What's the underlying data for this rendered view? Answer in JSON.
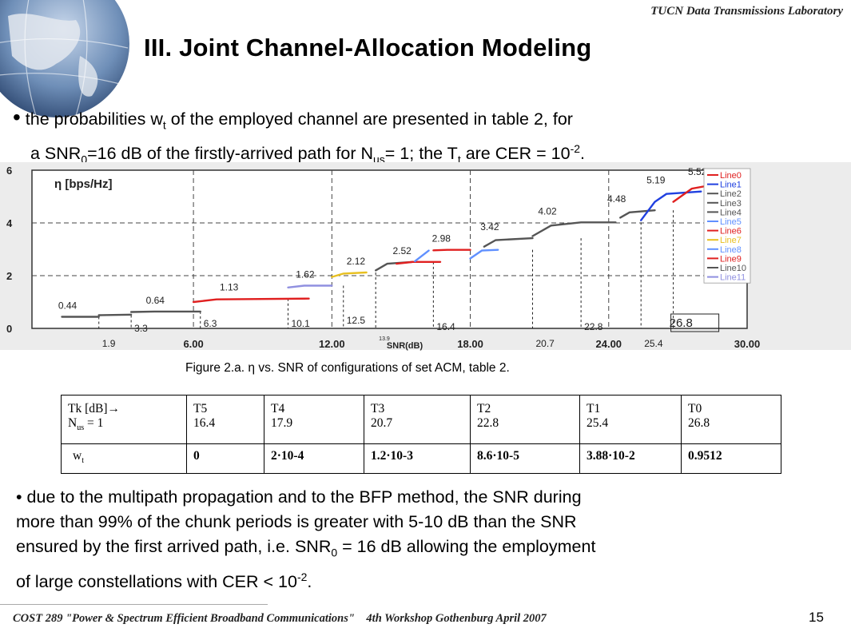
{
  "header": {
    "lab": "TUCN Data Transmissions Laboratory",
    "title": "III. Joint Channel-Allocation Modeling"
  },
  "bullet1": {
    "l1_pre": " the probabilities w",
    "l1_sub": "t",
    "l1_post": " of the employed channel are presented in table 2, for",
    "l2_a": "a SNR",
    "l2_sub0": "0",
    "l2_b": "=16 dB of the firstly-arrived path for N",
    "l2_sub1": "us",
    "l2_c": "= 1; the T",
    "l2_sub2": "t",
    "l2_d": " are CER = 10",
    "l2_sup": "-2",
    "l2_e": "."
  },
  "figure_caption": "Figure 2.a. η vs. SNR of configurations of set ACM, table 2.",
  "chart_data": {
    "type": "line",
    "ylabel": "η [bps/Hz]",
    "xlabel": "SNR(dB)",
    "xlim": [
      -1,
      30
    ],
    "ylim": [
      0,
      6
    ],
    "xticks": [
      "0",
      "6.00",
      "12.00",
      "18.00",
      "24.00",
      "30.00"
    ],
    "yticks": [
      "0",
      "2",
      "4",
      "6"
    ],
    "legend": [
      "Line0",
      "Line1",
      "Line2",
      "Line3",
      "Line4",
      "Line5",
      "Line6",
      "Line7",
      "Line8",
      "Line9",
      "Line10",
      "Line11"
    ],
    "legend_colors": [
      "#e02020",
      "#2040e0",
      "#555555",
      "#555555",
      "#555555",
      "#6090ff",
      "#e02020",
      "#e8c020",
      "#6090ff",
      "#e02020",
      "#555555",
      "#9090e0"
    ],
    "level_labels": [
      {
        "text": "0.44",
        "x": 0.0,
        "y": 0.44
      },
      {
        "text": "0.64",
        "x": 3.8,
        "y": 0.64
      },
      {
        "text": "1.13",
        "x": 7.0,
        "y": 1.13
      },
      {
        "text": "1.62",
        "x": 10.3,
        "y": 1.62
      },
      {
        "text": "2.12",
        "x": 12.5,
        "y": 2.12
      },
      {
        "text": "2.52",
        "x": 14.5,
        "y": 2.52
      },
      {
        "text": "2.98",
        "x": 16.2,
        "y": 2.98
      },
      {
        "text": "3.42",
        "x": 18.3,
        "y": 3.42
      },
      {
        "text": "4.02",
        "x": 20.8,
        "y": 4.02
      },
      {
        "text": "4.48",
        "x": 23.8,
        "y": 4.48
      },
      {
        "text": "5.19",
        "x": 25.5,
        "y": 5.19
      },
      {
        "text": "5.52",
        "x": 27.3,
        "y": 5.52
      }
    ],
    "threshold_labels": [
      {
        "text": "1.9",
        "x": 1.9
      },
      {
        "text": "3.3",
        "x": 3.3
      },
      {
        "text": "6.3",
        "x": 6.3
      },
      {
        "text": "10.1",
        "x": 10.1
      },
      {
        "text": "12.5",
        "x": 12.5
      },
      {
        "text": "13.9",
        "x": 13.9
      },
      {
        "text": "16.4",
        "x": 16.4
      },
      {
        "text": "20.7",
        "x": 20.7
      },
      {
        "text": "22.8",
        "x": 22.8
      },
      {
        "text": "25.4",
        "x": 25.4
      },
      {
        "text": "26.8",
        "x": 26.8
      }
    ],
    "series": [
      {
        "color": "#555555",
        "points": [
          [
            0.3,
            0.44
          ],
          [
            1.9,
            0.44
          ]
        ]
      },
      {
        "color": "#555555",
        "points": [
          [
            1.9,
            0.5
          ],
          [
            3.3,
            0.52
          ]
        ]
      },
      {
        "color": "#555555",
        "points": [
          [
            3.3,
            0.62
          ],
          [
            4.3,
            0.64
          ],
          [
            6.3,
            0.64
          ]
        ]
      },
      {
        "color": "#e02020",
        "points": [
          [
            6.0,
            1.0
          ],
          [
            7.0,
            1.1
          ],
          [
            11.0,
            1.13
          ]
        ]
      },
      {
        "color": "#9090e0",
        "points": [
          [
            10.1,
            1.55
          ],
          [
            10.8,
            1.62
          ],
          [
            12.0,
            1.62
          ]
        ]
      },
      {
        "color": "#e8c020",
        "points": [
          [
            12.0,
            1.95
          ],
          [
            12.5,
            2.08
          ],
          [
            13.5,
            2.12
          ]
        ]
      },
      {
        "color": "#555555",
        "points": [
          [
            13.9,
            2.2
          ],
          [
            14.4,
            2.45
          ],
          [
            15.5,
            2.52
          ]
        ]
      },
      {
        "color": "#e02020",
        "points": [
          [
            14.8,
            2.45
          ],
          [
            15.5,
            2.52
          ],
          [
            16.7,
            2.52
          ]
        ]
      },
      {
        "color": "#6090ff",
        "points": [
          [
            15.6,
            2.55
          ],
          [
            16.2,
            2.95
          ]
        ]
      },
      {
        "color": "#e02020",
        "points": [
          [
            16.4,
            2.96
          ],
          [
            17.0,
            2.98
          ],
          [
            18.0,
            2.98
          ]
        ]
      },
      {
        "color": "#6090ff",
        "points": [
          [
            18.0,
            2.65
          ],
          [
            18.5,
            2.95
          ],
          [
            19.2,
            2.98
          ]
        ]
      },
      {
        "color": "#555555",
        "points": [
          [
            18.6,
            3.1
          ],
          [
            19.1,
            3.35
          ],
          [
            20.7,
            3.42
          ]
        ]
      },
      {
        "color": "#555555",
        "points": [
          [
            20.7,
            3.5
          ],
          [
            21.5,
            3.9
          ],
          [
            22.8,
            4.02
          ],
          [
            24.3,
            4.02
          ]
        ]
      },
      {
        "color": "#555555",
        "points": [
          [
            24.5,
            4.2
          ],
          [
            24.9,
            4.4
          ],
          [
            26.0,
            4.48
          ]
        ]
      },
      {
        "color": "#2040e0",
        "points": [
          [
            25.4,
            4.1
          ],
          [
            26.0,
            4.8
          ],
          [
            26.5,
            5.1
          ],
          [
            28.0,
            5.19
          ]
        ]
      },
      {
        "color": "#e02020",
        "points": [
          [
            26.8,
            4.8
          ],
          [
            27.6,
            5.3
          ],
          [
            29.0,
            5.52
          ]
        ]
      }
    ]
  },
  "table": {
    "header": {
      "tk_label": "Tk [dB]→",
      "nus_pre": "N",
      "nus_sub": "us",
      "nus_post": " = 1",
      "wt_pre": "w",
      "wt_sub": "t"
    },
    "columns": [
      {
        "name": "T5",
        "snr": "16.4",
        "wt": "0"
      },
      {
        "name": "T4",
        "snr": "17.9",
        "wt": "2·10-4"
      },
      {
        "name": "T3",
        "snr": "20.7",
        "wt": "1.2·10-3"
      },
      {
        "name": "T2",
        "snr": "22.8",
        "wt": "8.6·10-5"
      },
      {
        "name": "T1",
        "snr": "25.4",
        "wt": "3.88·10-2"
      },
      {
        "name": "T0",
        "snr": "26.8",
        "wt": "0.9512"
      }
    ]
  },
  "bullet2": {
    "l1": "• due to the multipath propagation and to the BFP method, the SNR during",
    "l2": "more than 99% of the chunk periods is greater with 5-10 dB than the SNR",
    "l3a": "ensured by the first arrived path, i.e. SNR",
    "l3sub": "0",
    "l3b": " = 16 dB allowing the employment",
    "l4a": "of large constellations with CER < 10",
    "l4sup": "-2",
    "l4b": "."
  },
  "footer": {
    "text": "COST 289 \"Power & Spectrum Efficient Broadband Communications\"    4th Workshop Gothenburg April 2007",
    "page": "15"
  },
  "globe_colors": {
    "ocean": "#6f8fb8",
    "land": "#d8dde6"
  }
}
